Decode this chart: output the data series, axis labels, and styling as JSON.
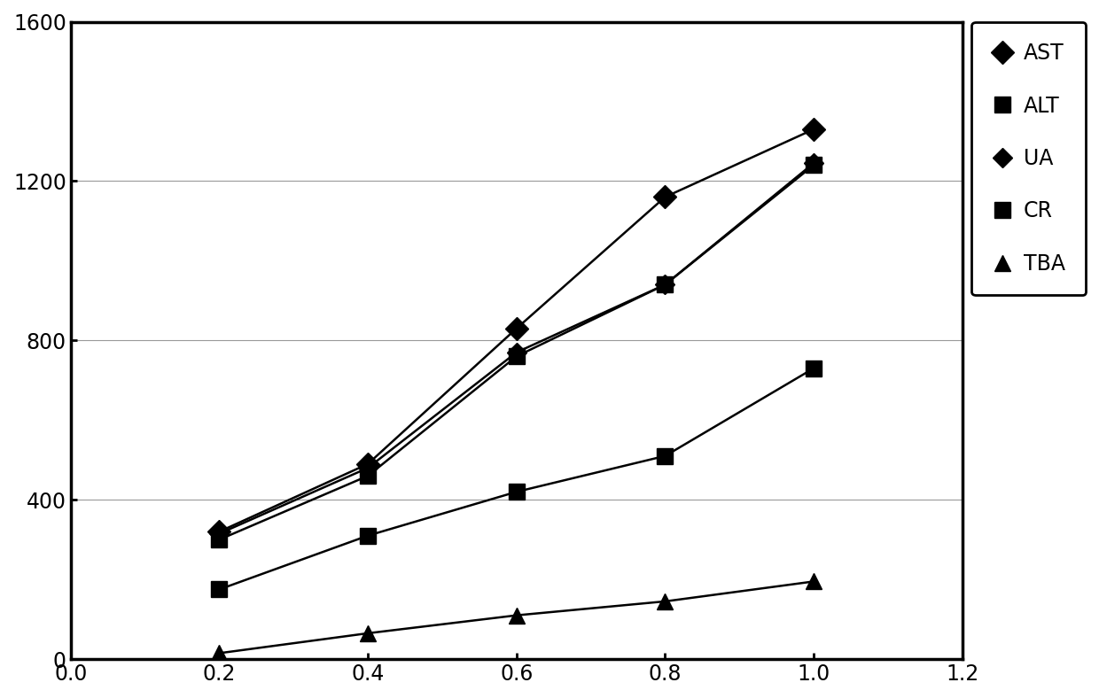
{
  "x": [
    0.2,
    0.4,
    0.6,
    0.8,
    1.0
  ],
  "AST": [
    320,
    490,
    830,
    1160,
    1330
  ],
  "UA": [
    315,
    480,
    770,
    940,
    1245
  ],
  "ALT": [
    300,
    460,
    760,
    940,
    1240
  ],
  "CR": [
    175,
    310,
    420,
    510,
    730
  ],
  "TBA": [
    15,
    65,
    110,
    145,
    195
  ],
  "xlim": [
    0,
    1.2
  ],
  "ylim": [
    0,
    1600
  ],
  "xticks": [
    0,
    0.2,
    0.4,
    0.6,
    0.8,
    1.0,
    1.2
  ],
  "yticks": [
    0,
    400,
    800,
    1200,
    1600
  ],
  "background_color": "#ffffff",
  "line_color": "#000000",
  "fontsize_ticks": 17,
  "fontsize_legend": 17,
  "marker_size_diamond_large": 13,
  "marker_size_diamond_small": 11,
  "marker_size_square_large": 13,
  "marker_size_square_small": 13,
  "marker_size_triangle": 13,
  "line_width": 1.8
}
